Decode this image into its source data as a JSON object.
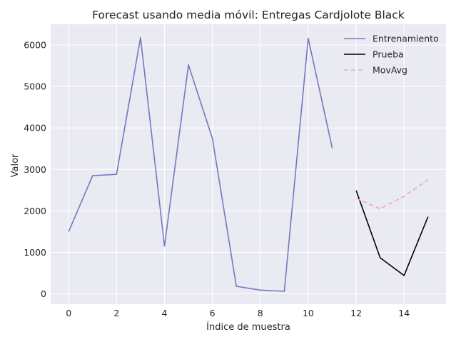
{
  "chart_data": {
    "type": "line",
    "title": "Forecast usando media móvil: Entregas Cardjolote Black",
    "xlabel": "Índice de muestra",
    "ylabel": "Valor",
    "xlim": [
      -0.75,
      15.75
    ],
    "ylim": [
      -250,
      6500
    ],
    "xticks": [
      0,
      2,
      4,
      6,
      8,
      10,
      12,
      14
    ],
    "yticks": [
      0,
      1000,
      2000,
      3000,
      4000,
      5000,
      6000
    ],
    "grid": true,
    "legend_position": "top-right",
    "series": [
      {
        "name": "Entrenamiento",
        "color": "#7b74c4",
        "style": "solid",
        "x": [
          0,
          1,
          2,
          3,
          4,
          5,
          6,
          7,
          8,
          9,
          10,
          11
        ],
        "y": [
          1500,
          2850,
          2880,
          6180,
          1150,
          5520,
          3750,
          180,
          90,
          60,
          6160,
          3520
        ]
      },
      {
        "name": "Prueba",
        "color": "#000000",
        "style": "solid",
        "x": [
          12,
          13,
          14,
          15
        ],
        "y": [
          2490,
          870,
          440,
          1860
        ]
      },
      {
        "name": "MovAvg",
        "color": "#f4a4bd",
        "style": "dashed",
        "x": [
          12,
          13,
          14,
          15
        ],
        "y": [
          2300,
          2050,
          2350,
          2750
        ]
      }
    ]
  }
}
